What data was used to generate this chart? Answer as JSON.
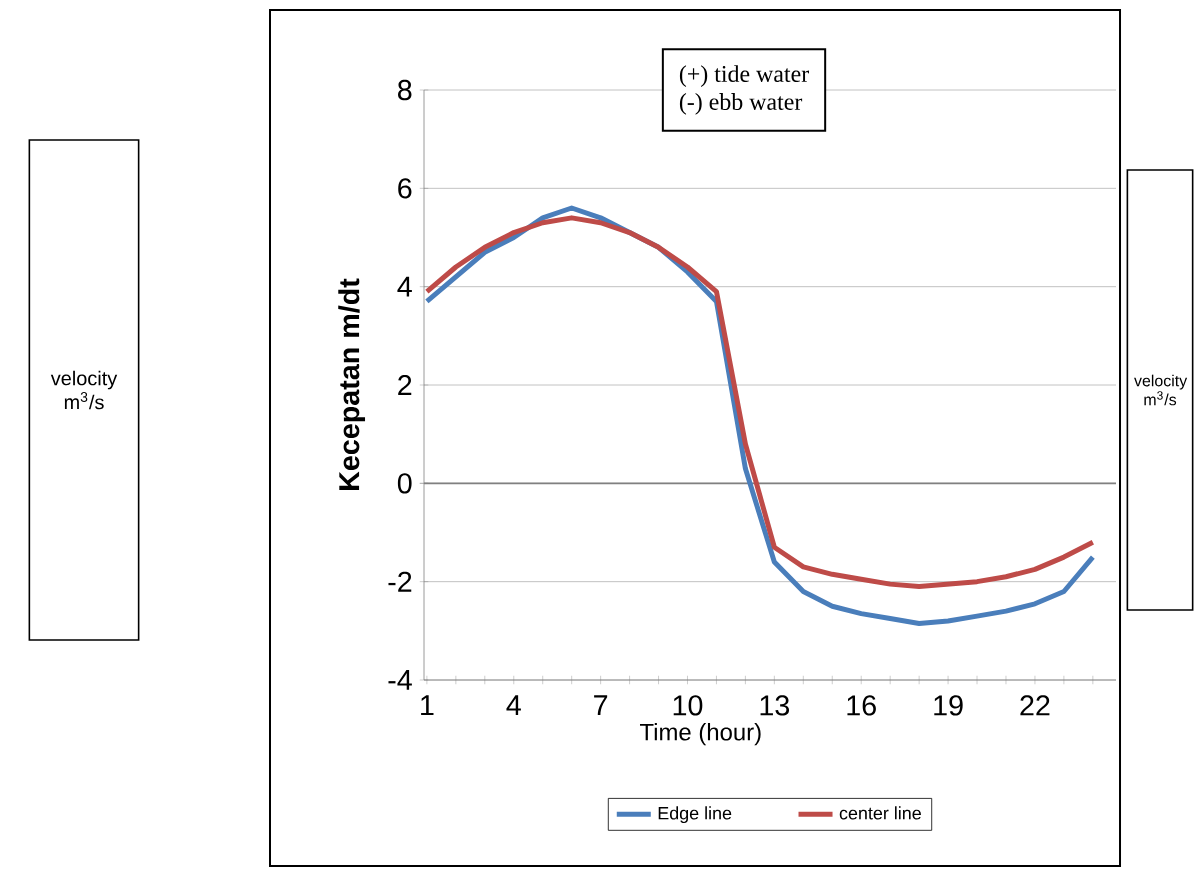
{
  "chart_data": {
    "type": "line",
    "xlabel": "Time (hour)",
    "ylabel": "Kecepatan m/dt",
    "annotations": [
      "(+) tide water",
      "(-) ebb water",
      "velocity m$^{3}$/s",
      "velocity m$^{3}$/s"
    ],
    "categories": [
      "1",
      null,
      null,
      "4",
      null,
      null,
      "7",
      null,
      null,
      "10",
      null,
      null,
      "13",
      null,
      null,
      "16",
      null,
      null,
      "19",
      null,
      null,
      "22",
      null,
      null
    ],
    "series": [
      {
        "name": "Edge line",
        "color": "#4a7ebb",
        "values": [
          3.7,
          4.2,
          4.7,
          5.0,
          5.4,
          5.6,
          5.4,
          5.1,
          4.8,
          4.3,
          3.7,
          0.3,
          -1.6,
          -2.2,
          -2.5,
          -2.65,
          -2.75,
          -2.85,
          -2.8,
          -2.7,
          -2.6,
          -2.45,
          -2.2,
          -1.5
        ]
      },
      {
        "name": "center line",
        "color": "#be4b48",
        "values": [
          3.9,
          4.4,
          4.8,
          5.1,
          5.3,
          5.4,
          5.3,
          5.1,
          4.8,
          4.4,
          3.9,
          0.8,
          -1.3,
          -1.7,
          -1.85,
          -1.95,
          -2.05,
          -2.1,
          -2.05,
          -2.0,
          -1.9,
          -1.75,
          -1.5,
          -1.2
        ]
      }
    ],
    "ylim": [
      -4,
      8
    ],
    "yticks": [
      -4,
      -2,
      0,
      2,
      4,
      6,
      8
    ],
    "grid": "y",
    "legend": "bottom",
    "marker": "none",
    "line_style": "solid"
  }
}
